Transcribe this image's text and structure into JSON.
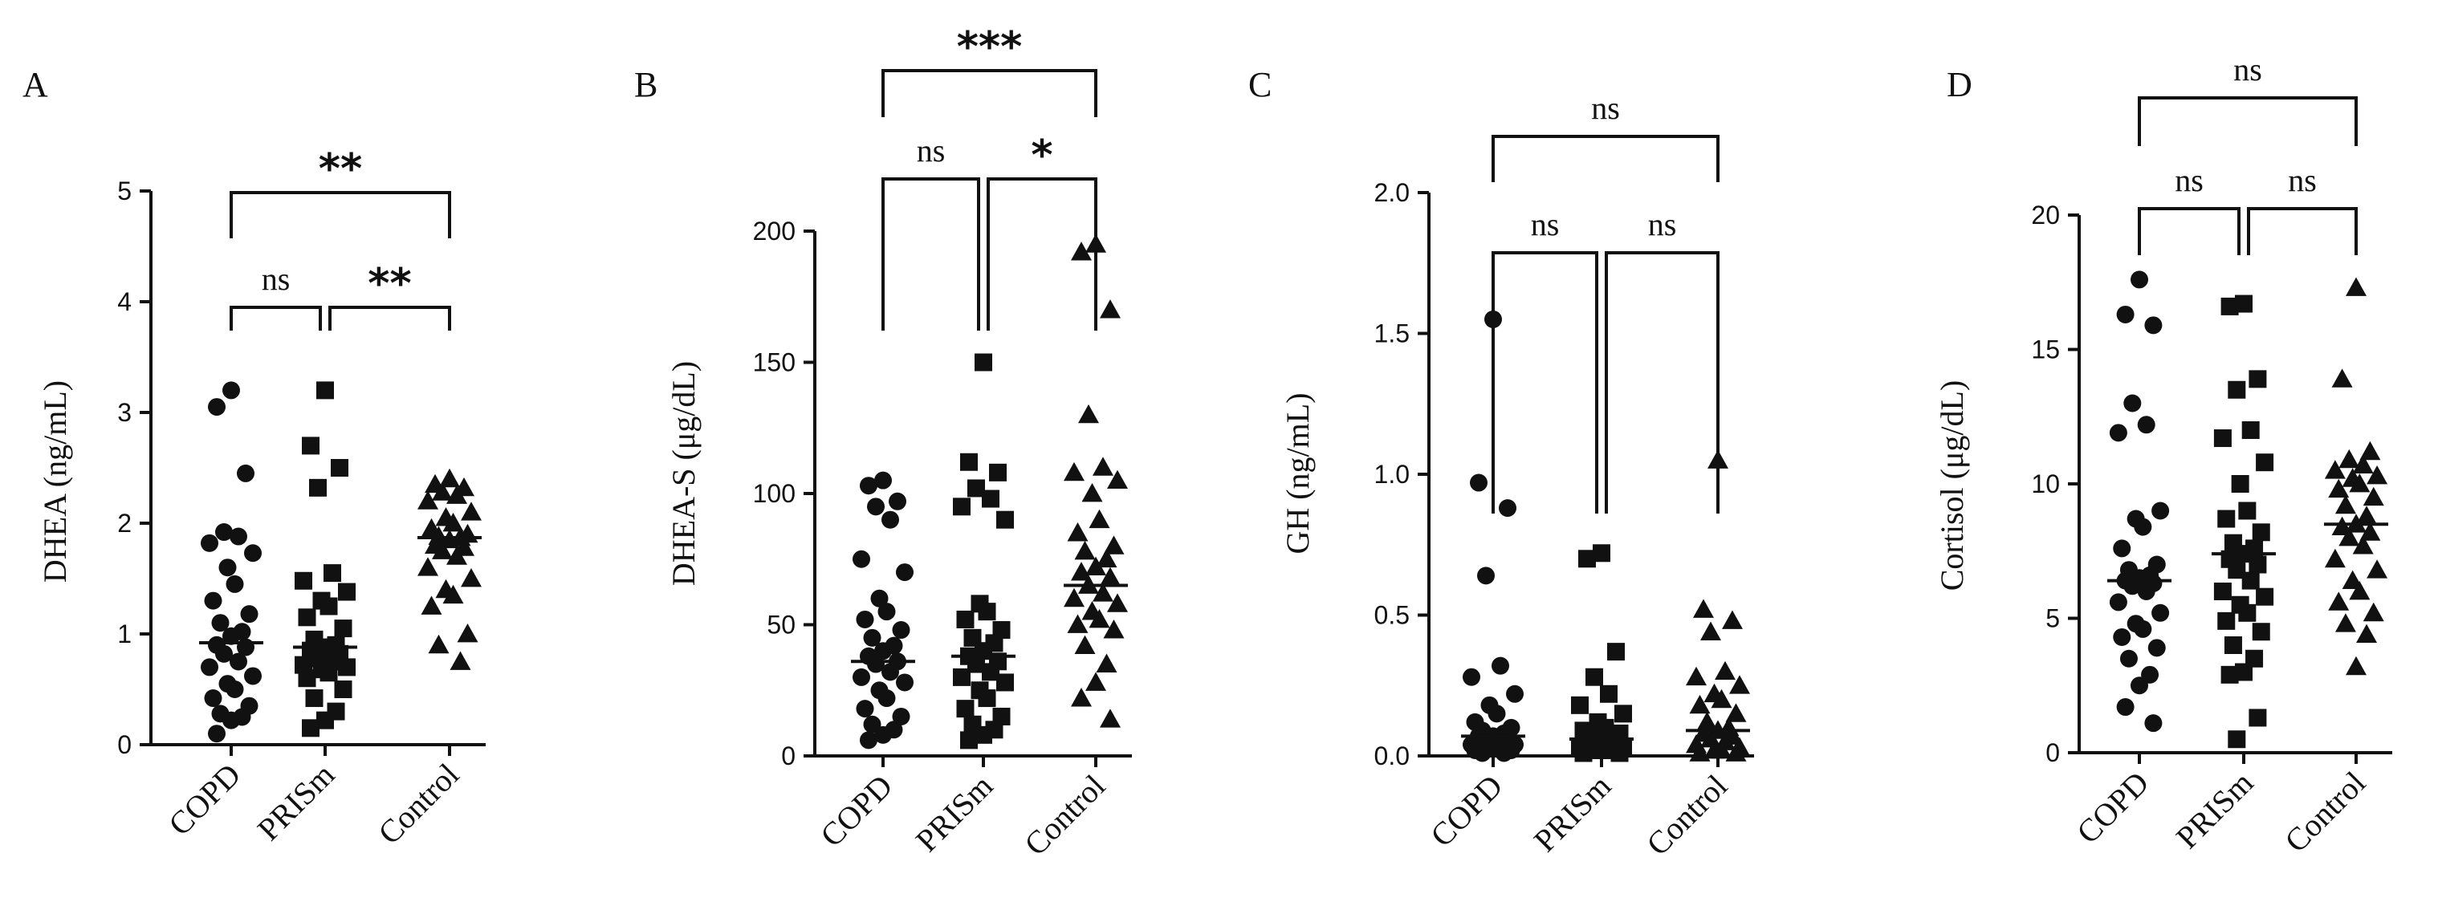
{
  "chart_data": [
    {
      "type": "scatter",
      "panel": "A",
      "ylabel": "DHEA (ng/mL)",
      "ylim": [
        0,
        5
      ],
      "yticks": [
        "0",
        "1",
        "2",
        "3",
        "4",
        "5"
      ],
      "categories": [
        "COPD",
        "PRISm",
        "Control"
      ],
      "markers": [
        "circle",
        "square",
        "triangle"
      ],
      "series": [
        {
          "name": "COPD",
          "median": 0.92,
          "values": [
            3.2,
            3.05,
            2.45,
            1.92,
            1.88,
            1.82,
            1.73,
            1.6,
            1.45,
            1.3,
            1.18,
            1.1,
            1.02,
            0.98,
            0.9,
            0.88,
            0.82,
            0.75,
            0.7,
            0.62,
            0.55,
            0.5,
            0.42,
            0.35,
            0.28,
            0.25,
            0.22,
            0.1
          ]
        },
        {
          "name": "PRISm",
          "median": 0.88,
          "values": [
            3.2,
            2.7,
            2.5,
            2.32,
            1.55,
            1.48,
            1.38,
            1.3,
            1.25,
            1.15,
            1.05,
            0.95,
            0.9,
            0.88,
            0.85,
            0.82,
            0.78,
            0.75,
            0.72,
            0.7,
            0.68,
            0.65,
            0.6,
            0.5,
            0.42,
            0.3,
            0.22,
            0.15
          ]
        },
        {
          "name": "Control",
          "median": 1.87,
          "values": [
            2.4,
            2.35,
            2.32,
            2.28,
            2.25,
            2.2,
            2.1,
            2.05,
            2.0,
            1.95,
            1.9,
            1.88,
            1.87,
            1.85,
            1.8,
            1.78,
            1.75,
            1.7,
            1.6,
            1.5,
            1.4,
            1.35,
            1.25,
            1.0,
            0.9,
            0.75
          ]
        }
      ],
      "comparisons": [
        {
          "from": 0,
          "to": 1,
          "label": "ns"
        },
        {
          "from": 1,
          "to": 2,
          "label": "**"
        },
        {
          "from": 0,
          "to": 2,
          "label": "**"
        }
      ]
    },
    {
      "type": "scatter",
      "panel": "B",
      "ylabel": "DHEA-S (μg/dL)",
      "ylim": [
        0,
        200
      ],
      "yticks": [
        "0",
        "50",
        "100",
        "150",
        "200"
      ],
      "categories": [
        "COPD",
        "PRISm",
        "Control"
      ],
      "markers": [
        "circle",
        "square",
        "triangle"
      ],
      "series": [
        {
          "name": "COPD",
          "median": 36,
          "values": [
            105,
            103,
            97,
            95,
            90,
            75,
            70,
            60,
            55,
            52,
            48,
            45,
            42,
            40,
            38,
            36,
            35,
            32,
            30,
            28,
            25,
            22,
            18,
            15,
            12,
            10,
            8,
            6
          ]
        },
        {
          "name": "PRISm",
          "median": 38,
          "values": [
            150,
            112,
            108,
            102,
            98,
            95,
            90,
            58,
            55,
            52,
            48,
            45,
            43,
            40,
            38,
            36,
            35,
            32,
            30,
            28,
            25,
            22,
            18,
            15,
            12,
            10,
            8,
            6
          ]
        },
        {
          "name": "Control",
          "median": 65,
          "values": [
            195,
            192,
            170,
            130,
            110,
            108,
            105,
            100,
            90,
            85,
            80,
            78,
            75,
            72,
            70,
            68,
            65,
            62,
            60,
            58,
            55,
            52,
            50,
            48,
            42,
            35,
            28,
            22,
            14
          ]
        }
      ],
      "comparisons": [
        {
          "from": 0,
          "to": 1,
          "label": "ns"
        },
        {
          "from": 1,
          "to": 2,
          "label": "*"
        },
        {
          "from": 0,
          "to": 2,
          "label": "***"
        }
      ]
    },
    {
      "type": "scatter",
      "panel": "C",
      "ylabel": "GH (ng/mL)",
      "ylim": [
        0,
        2
      ],
      "yticks": [
        "0.0",
        "0.5",
        "1.0",
        "1.5",
        "2.0"
      ],
      "categories": [
        "COPD",
        "PRISm",
        "Control"
      ],
      "markers": [
        "circle",
        "square",
        "triangle"
      ],
      "series": [
        {
          "name": "COPD",
          "median": 0.07,
          "values": [
            1.55,
            0.97,
            0.88,
            0.64,
            0.32,
            0.28,
            0.22,
            0.18,
            0.15,
            0.12,
            0.1,
            0.09,
            0.08,
            0.07,
            0.07,
            0.06,
            0.05,
            0.05,
            0.04,
            0.04,
            0.03,
            0.03,
            0.02,
            0.02,
            0.01,
            0.01
          ]
        },
        {
          "name": "PRISm",
          "median": 0.06,
          "values": [
            0.72,
            0.7,
            0.37,
            0.28,
            0.22,
            0.18,
            0.15,
            0.12,
            0.1,
            0.09,
            0.08,
            0.07,
            0.06,
            0.06,
            0.05,
            0.05,
            0.04,
            0.04,
            0.03,
            0.03,
            0.02,
            0.02,
            0.01,
            0.01
          ]
        },
        {
          "name": "Control",
          "median": 0.09,
          "values": [
            1.05,
            0.52,
            0.48,
            0.44,
            0.3,
            0.28,
            0.25,
            0.22,
            0.2,
            0.18,
            0.15,
            0.12,
            0.1,
            0.09,
            0.08,
            0.07,
            0.06,
            0.05,
            0.04,
            0.03,
            0.02,
            0.02,
            0.01,
            0.01
          ]
        }
      ],
      "comparisons": [
        {
          "from": 0,
          "to": 1,
          "label": "ns"
        },
        {
          "from": 1,
          "to": 2,
          "label": "ns"
        },
        {
          "from": 0,
          "to": 2,
          "label": "ns"
        }
      ]
    },
    {
      "type": "scatter",
      "panel": "D",
      "ylabel": "Cortisol (μg/dL)",
      "ylim": [
        0,
        20
      ],
      "yticks": [
        "0",
        "5",
        "10",
        "15",
        "20"
      ],
      "categories": [
        "COPD",
        "PRISm",
        "Control"
      ],
      "markers": [
        "circle",
        "square",
        "triangle"
      ],
      "series": [
        {
          "name": "COPD",
          "median": 6.4,
          "values": [
            17.6,
            16.3,
            15.9,
            13.0,
            12.2,
            11.9,
            9.0,
            8.7,
            8.4,
            7.6,
            7.0,
            6.8,
            6.6,
            6.5,
            6.4,
            6.3,
            6.2,
            6.0,
            5.6,
            5.2,
            4.8,
            4.6,
            4.3,
            3.9,
            3.5,
            2.9,
            2.5,
            1.7,
            1.1
          ]
        },
        {
          "name": "PRISm",
          "median": 7.4,
          "values": [
            16.7,
            16.6,
            13.9,
            13.5,
            12.0,
            11.7,
            10.8,
            10.0,
            9.0,
            8.7,
            8.2,
            7.8,
            7.6,
            7.4,
            7.2,
            7.0,
            6.8,
            6.4,
            6.0,
            5.8,
            5.5,
            5.2,
            4.9,
            4.5,
            4.0,
            3.5,
            3.0,
            2.9,
            1.3,
            0.5
          ]
        },
        {
          "name": "Control",
          "median": 8.5,
          "values": [
            17.3,
            13.9,
            11.2,
            10.9,
            10.7,
            10.5,
            10.3,
            10.2,
            10.0,
            9.8,
            9.5,
            9.2,
            8.8,
            8.5,
            8.4,
            8.2,
            8.0,
            7.7,
            7.2,
            6.8,
            6.4,
            6.0,
            5.6,
            5.2,
            4.8,
            4.4,
            3.2
          ]
        }
      ],
      "comparisons": [
        {
          "from": 0,
          "to": 1,
          "label": "ns"
        },
        {
          "from": 1,
          "to": 2,
          "label": "ns"
        },
        {
          "from": 0,
          "to": 2,
          "label": "ns"
        }
      ]
    }
  ]
}
